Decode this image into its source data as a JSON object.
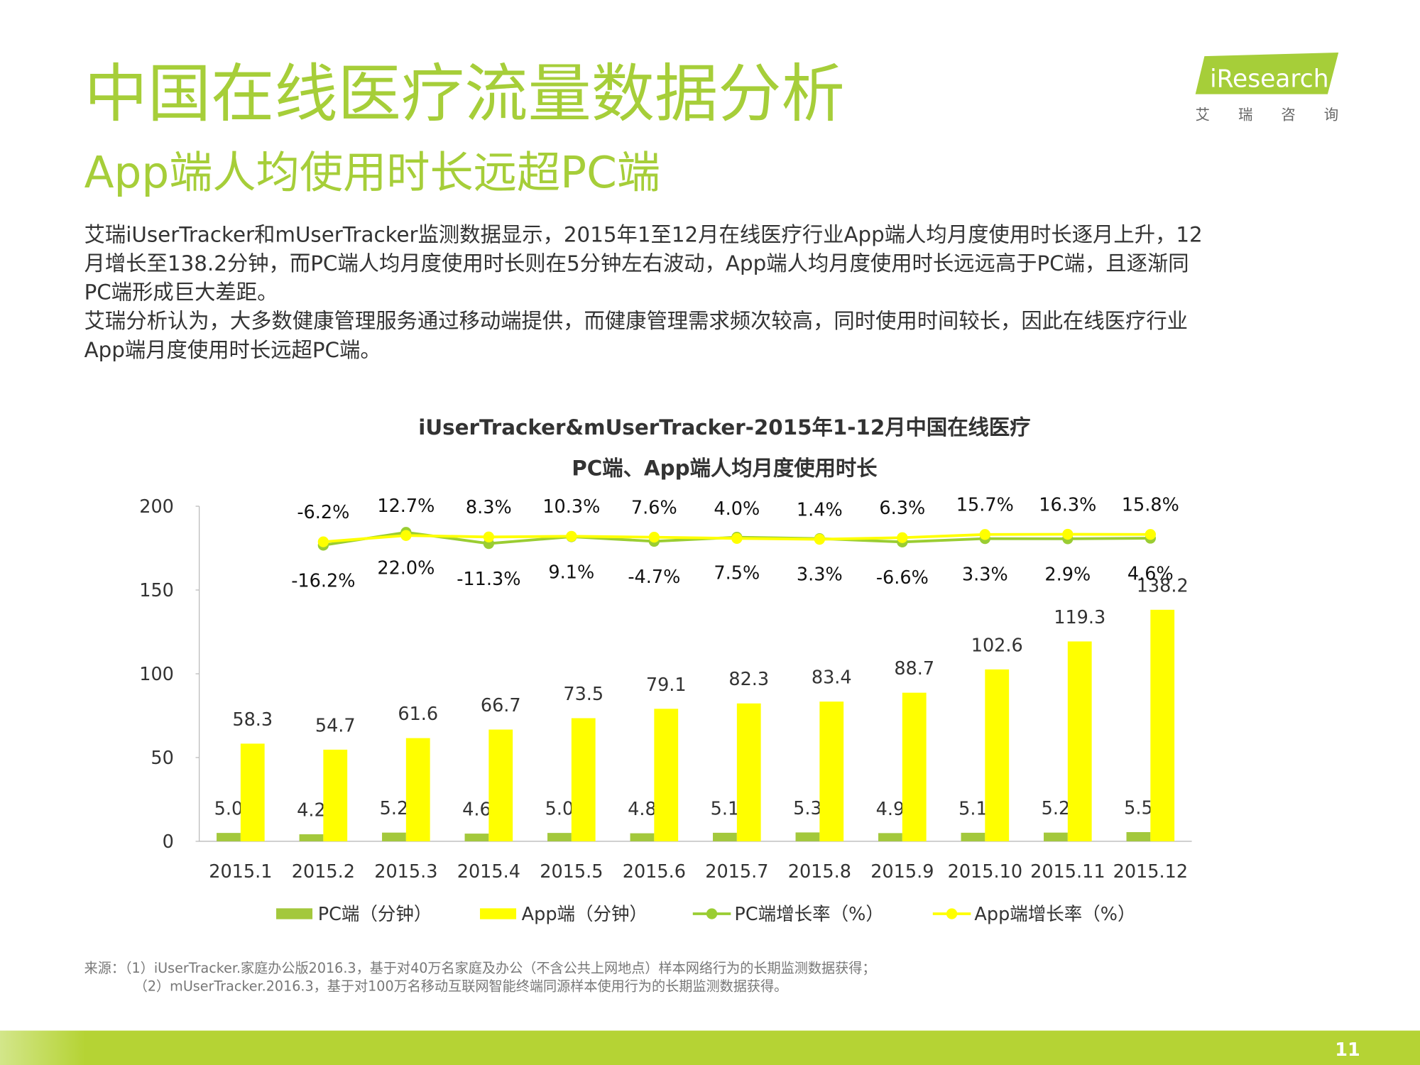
{
  "header": {
    "title": "中国在线医疗流量数据分析",
    "subtitle": "App端人均使用时长远超PC端",
    "logo": "iResearch",
    "logo_cn": "艾 瑞 咨 询"
  },
  "body": {
    "paragraph": [
      "艾瑞iUserTracker和mUserTracker监测数据显示，2015年1至12月在线医疗行业App端人均月度使用时长逐月上升，12",
      "月增长至138.2分钟，而PC端人均月度使用时长则在5分钟左右波动，App端人均月度使用时长远远高于PC端，且逐渐同",
      "PC端形成巨大差距。",
      "艾瑞分析认为，大多数健康管理服务通过移动端提供，而健康管理需求频次较高，同时使用时间较长，因此在线医疗行业",
      "App端月度使用时长远超PC端。"
    ]
  },
  "chart_data": {
    "type": "bar",
    "title": "iUserTracker&mUserTracker-2015年1-12月中国在线医疗",
    "subtitle": "PC端、App端人均月度使用时长",
    "categories": [
      "2015.1",
      "2015.2",
      "2015.3",
      "2015.4",
      "2015.5",
      "2015.6",
      "2015.7",
      "2015.8",
      "2015.9",
      "2015.10",
      "2015.11",
      "2015.12"
    ],
    "series": [
      {
        "name": "PC端（分钟）",
        "type": "bar",
        "color": "#a3c83c",
        "values": [
          5.0,
          4.2,
          5.2,
          4.6,
          5.0,
          4.8,
          5.1,
          5.3,
          4.9,
          5.1,
          5.2,
          5.5
        ],
        "value_labels": [
          "5.0",
          "4.2",
          "5.2",
          "4.6",
          "5.0",
          "4.8",
          "5.1",
          "5.3",
          "4.9",
          "5.1",
          "5.2",
          "5.5"
        ]
      },
      {
        "name": "App端（分钟）",
        "type": "bar",
        "color": "#ffff00",
        "values": [
          58.3,
          54.7,
          61.6,
          66.7,
          73.5,
          79.1,
          82.3,
          83.4,
          88.7,
          102.6,
          119.3,
          138.2
        ]
      },
      {
        "name": "PC端增长率（%）",
        "type": "line",
        "axis": "y2",
        "color": "#9acd32",
        "values": [
          null,
          -16.2,
          22.0,
          -11.3,
          9.1,
          -4.7,
          7.5,
          3.3,
          -6.6,
          3.3,
          2.9,
          4.6
        ],
        "value_labels": [
          null,
          "-16.2%",
          "22.0%",
          "-11.3%",
          "9.1%",
          "-4.7%",
          "7.5%",
          "3.3%",
          "-6.6%",
          "3.3%",
          "2.9%",
          "4.6%"
        ]
      },
      {
        "name": "App端增长率（%）",
        "type": "line",
        "axis": "y2",
        "color": "#ffff00",
        "values": [
          null,
          -6.2,
          12.7,
          8.3,
          10.3,
          7.6,
          4.0,
          1.4,
          6.3,
          15.7,
          16.3,
          15.8
        ],
        "value_labels": [
          null,
          "-6.2%",
          "12.7%",
          "8.3%",
          "10.3%",
          "7.6%",
          "4.0%",
          "1.4%",
          "6.3%",
          "15.7%",
          "16.3%",
          "15.8%"
        ]
      }
    ],
    "ylim": [
      0,
      200
    ],
    "yticks": [
      0,
      50,
      100,
      150,
      200
    ],
    "y2lim": [
      -900,
      100
    ],
    "grid": false
  },
  "footer": {
    "source": [
      "来源：（1）iUserTracker.家庭办公版2016.3，基于对40万名家庭及办公（不含公共上网地点）样本网络行为的长期监测数据获得；",
      "（2）mUserTracker.2016.3，基于对100万名移动互联网智能终端同源样本使用行为的长期监测数据获得。"
    ],
    "page": "11"
  }
}
